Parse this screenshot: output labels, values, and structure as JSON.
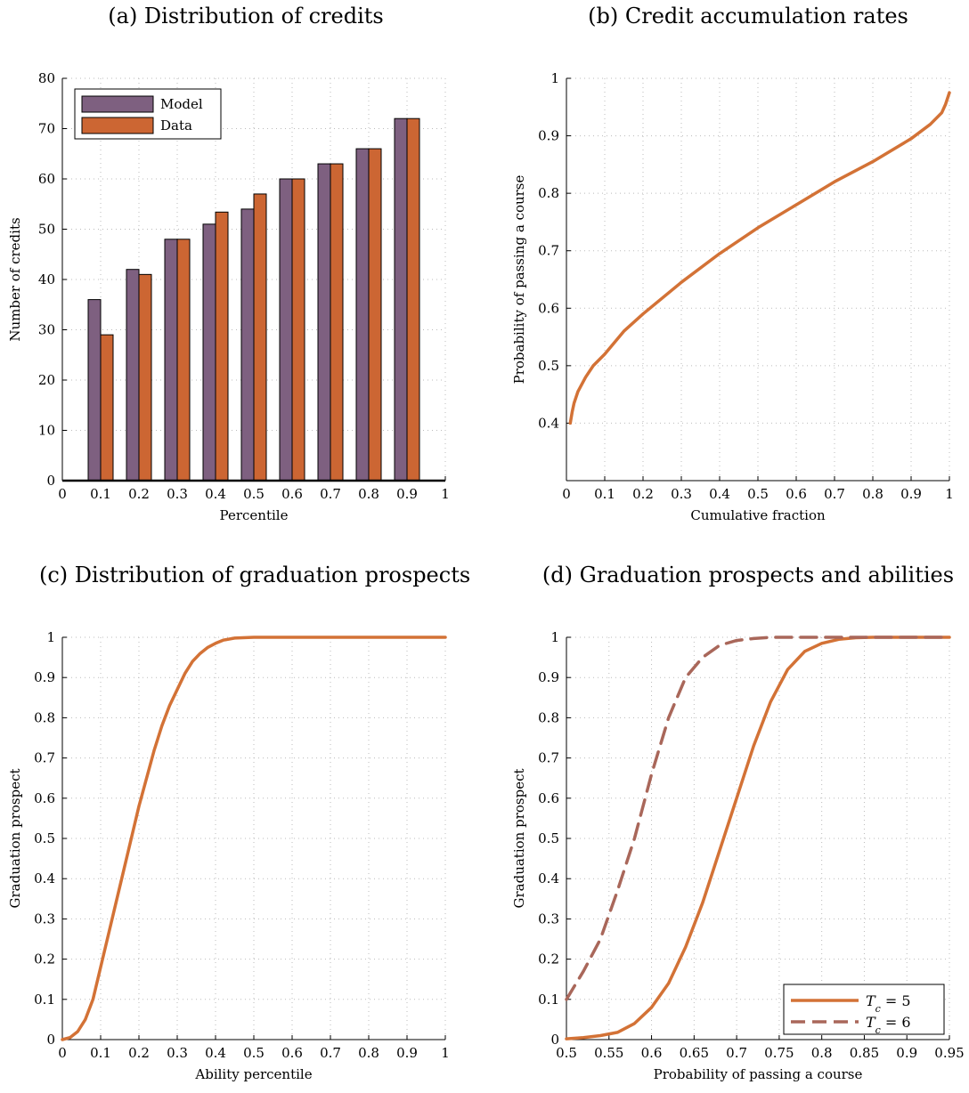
{
  "panels": {
    "a": {
      "title": "(a) Distribution of credits"
    },
    "b": {
      "title": "(b) Credit accumulation rates"
    },
    "c": {
      "title": "(c) Distribution of graduation prospects"
    },
    "d": {
      "title": "(d) Graduation prospects and abilities"
    }
  },
  "colors": {
    "model": "#7e6080",
    "data": "#cc6633",
    "line": "#d37236",
    "dashed": "#a9675a",
    "grid": "#bbbbbb"
  },
  "chart_data": [
    {
      "id": "a",
      "type": "bar",
      "xlabel": "Percentile",
      "ylabel": "Number of credits",
      "xlim": [
        0,
        1
      ],
      "ylim": [
        0,
        80
      ],
      "xticks": [
        "0",
        "0.1",
        "0.2",
        "0.3",
        "0.4",
        "0.5",
        "0.6",
        "0.7",
        "0.8",
        "0.9",
        "1"
      ],
      "yticks": [
        "0",
        "10",
        "20",
        "30",
        "40",
        "50",
        "60",
        "70",
        "80"
      ],
      "grid": true,
      "legend": "top-left",
      "categories": [
        0.1,
        0.2,
        0.3,
        0.4,
        0.5,
        0.6,
        0.7,
        0.8,
        0.9
      ],
      "series": [
        {
          "name": "Model",
          "values": [
            36,
            42,
            48,
            51,
            54,
            60,
            63,
            66,
            72
          ]
        },
        {
          "name": "Data",
          "values": [
            29,
            41,
            48,
            53.4,
            57,
            60,
            63,
            66,
            72
          ]
        }
      ]
    },
    {
      "id": "b",
      "type": "line",
      "xlabel": "Cumulative fraction",
      "ylabel": "Probability of passing a course",
      "xlim": [
        0,
        1
      ],
      "ylim": [
        0.3,
        1
      ],
      "xticks": [
        "0",
        "0.1",
        "0.2",
        "0.3",
        "0.4",
        "0.5",
        "0.6",
        "0.7",
        "0.8",
        "0.9",
        "1"
      ],
      "yticks": [
        "0.4",
        "0.5",
        "0.6",
        "0.7",
        "0.8",
        "0.9",
        "1"
      ],
      "grid": true,
      "series": [
        {
          "x": [
            0.01,
            0.015,
            0.02,
            0.03,
            0.05,
            0.07,
            0.1,
            0.15,
            0.2,
            0.3,
            0.4,
            0.5,
            0.6,
            0.7,
            0.8,
            0.9,
            0.95,
            0.98,
            0.99,
            1.0
          ],
          "y": [
            0.4,
            0.42,
            0.435,
            0.455,
            0.48,
            0.5,
            0.52,
            0.56,
            0.59,
            0.645,
            0.695,
            0.74,
            0.78,
            0.82,
            0.855,
            0.895,
            0.92,
            0.94,
            0.955,
            0.975
          ]
        }
      ]
    },
    {
      "id": "c",
      "type": "line",
      "xlabel": "Ability percentile",
      "ylabel": "Graduation prospect",
      "xlim": [
        0,
        1
      ],
      "ylim": [
        0,
        1
      ],
      "xticks": [
        "0",
        "0.1",
        "0.2",
        "0.3",
        "0.4",
        "0.5",
        "0.6",
        "0.7",
        "0.8",
        "0.9",
        "1"
      ],
      "yticks": [
        "0",
        "0.1",
        "0.2",
        "0.3",
        "0.4",
        "0.5",
        "0.6",
        "0.7",
        "0.8",
        "0.9",
        "1"
      ],
      "grid": true,
      "series": [
        {
          "x": [
            0,
            0.02,
            0.04,
            0.06,
            0.08,
            0.1,
            0.12,
            0.14,
            0.16,
            0.18,
            0.2,
            0.22,
            0.24,
            0.26,
            0.28,
            0.3,
            0.32,
            0.34,
            0.36,
            0.38,
            0.4,
            0.42,
            0.45,
            0.5,
            0.55,
            0.6,
            0.7,
            0.8,
            0.9,
            1.0
          ],
          "y": [
            0,
            0.005,
            0.02,
            0.05,
            0.1,
            0.18,
            0.26,
            0.34,
            0.42,
            0.5,
            0.58,
            0.65,
            0.72,
            0.78,
            0.83,
            0.87,
            0.91,
            0.94,
            0.96,
            0.975,
            0.985,
            0.993,
            0.998,
            1,
            1,
            1,
            1,
            1,
            1,
            1
          ]
        }
      ]
    },
    {
      "id": "d",
      "type": "line",
      "xlabel": "Probability of passing a course",
      "ylabel": "Graduation prospect",
      "xlim": [
        0.5,
        0.95
      ],
      "ylim": [
        0,
        1
      ],
      "xticks": [
        "0.5",
        "0.55",
        "0.6",
        "0.65",
        "0.7",
        "0.75",
        "0.8",
        "0.85",
        "0.9",
        "0.95"
      ],
      "yticks": [
        "0",
        "0.1",
        "0.2",
        "0.3",
        "0.4",
        "0.5",
        "0.6",
        "0.7",
        "0.8",
        "0.9",
        "1"
      ],
      "grid": true,
      "legend": "bottom-right",
      "series": [
        {
          "name": "T_c = 5",
          "style": "solid",
          "x": [
            0.5,
            0.52,
            0.54,
            0.56,
            0.58,
            0.6,
            0.62,
            0.64,
            0.66,
            0.68,
            0.7,
            0.72,
            0.74,
            0.76,
            0.78,
            0.8,
            0.82,
            0.84,
            0.86,
            0.9,
            0.95
          ],
          "y": [
            0.002,
            0.005,
            0.01,
            0.018,
            0.04,
            0.08,
            0.14,
            0.23,
            0.34,
            0.47,
            0.6,
            0.73,
            0.84,
            0.92,
            0.965,
            0.985,
            0.995,
            0.999,
            1,
            1,
            1
          ]
        },
        {
          "name": "T_c = 6",
          "style": "dashed",
          "x": [
            0.5,
            0.52,
            0.54,
            0.56,
            0.58,
            0.6,
            0.62,
            0.64,
            0.66,
            0.68,
            0.7,
            0.72,
            0.74,
            0.76,
            0.8,
            0.85,
            0.9,
            0.95
          ],
          "y": [
            0.1,
            0.17,
            0.25,
            0.37,
            0.5,
            0.66,
            0.8,
            0.9,
            0.95,
            0.98,
            0.992,
            0.997,
            1,
            1,
            1,
            1,
            1,
            1
          ]
        }
      ]
    }
  ]
}
